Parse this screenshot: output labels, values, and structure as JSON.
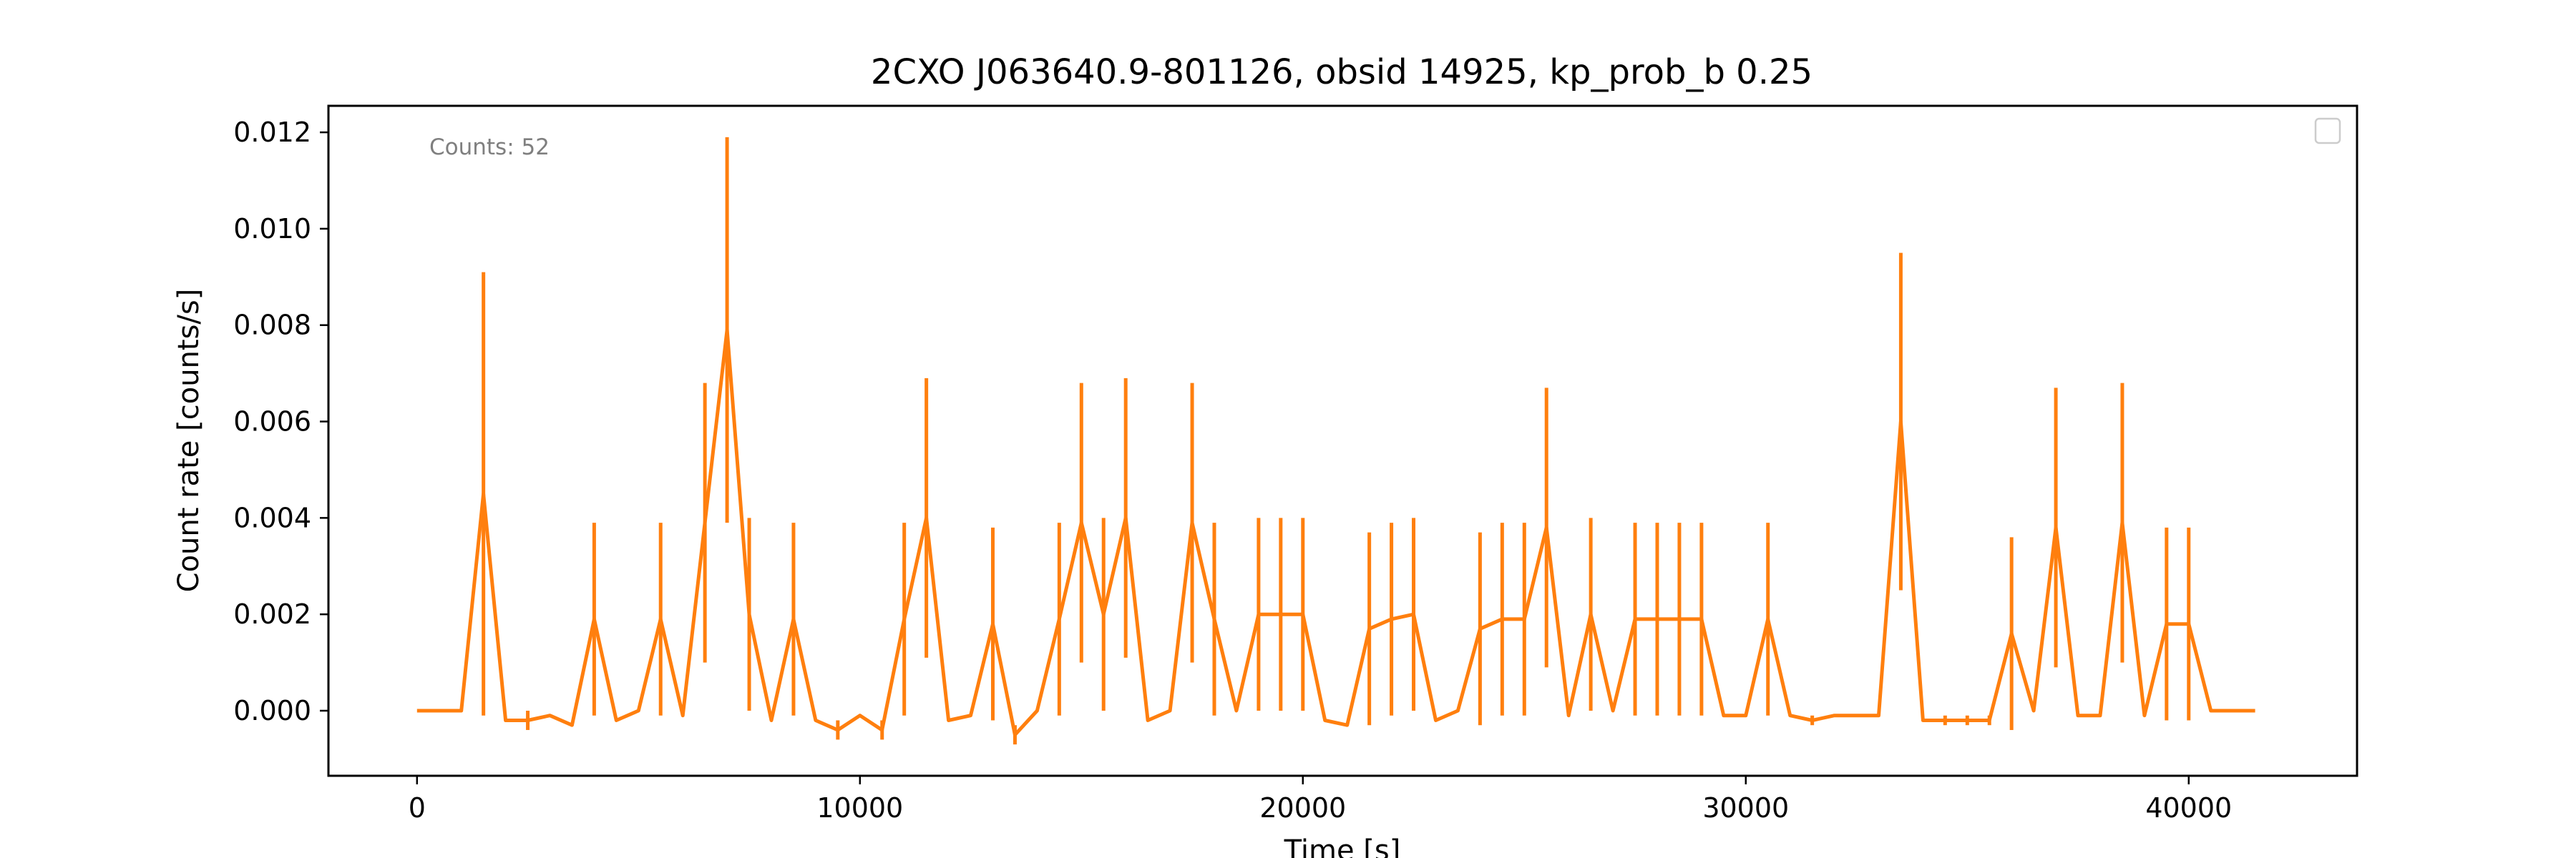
{
  "chart_data": {
    "type": "line",
    "title": "2CXO J063640.9-801126, obsid 14925, kp_prob_b 0.25",
    "xlabel": "Time [s]",
    "ylabel": "Count rate [counts/s]",
    "annotation": "Counts: 52",
    "xlim": [
      -2000,
      43800
    ],
    "ylim": [
      -0.00135,
      0.01255
    ],
    "xticks": [
      0,
      10000,
      20000,
      30000,
      40000
    ],
    "yticks": [
      0.0,
      0.002,
      0.004,
      0.006,
      0.008,
      0.01,
      0.012
    ],
    "ytick_labels": [
      "0.000",
      "0.002",
      "0.004",
      "0.006",
      "0.008",
      "0.010",
      "0.012"
    ],
    "legend": {
      "placement": "top-right",
      "entries": []
    },
    "grid": false,
    "color": "#ff7f0e",
    "series": [
      {
        "x": [
          0,
          1000,
          1500,
          2000,
          2500,
          3000,
          3500,
          4000,
          4500,
          5000,
          5500,
          6000,
          6500,
          7000,
          7500,
          8000,
          8500,
          9000,
          9500,
          10000,
          10500,
          11000,
          11500,
          12000,
          12500,
          13000,
          13500,
          14000,
          14500,
          15000,
          15500,
          16000,
          16500,
          17000,
          17500,
          18000,
          18500,
          19000,
          19500,
          20000,
          20500,
          21000,
          21500,
          22000,
          22500,
          23000,
          23500,
          24000,
          24500,
          25000,
          25500,
          26000,
          26500,
          27000,
          27500,
          28000,
          28500,
          29000,
          29500,
          30000,
          30500,
          31000,
          31500,
          32000,
          32500,
          33000,
          33500,
          34000,
          34500,
          35000,
          35500,
          36000,
          36500,
          37000,
          37500,
          38000,
          38500,
          39000,
          39500,
          40000,
          40500,
          41500
        ],
        "y": [
          0.0,
          0.0,
          0.0045,
          -0.0002,
          -0.0002,
          -0.0001,
          -0.0003,
          0.0019,
          -0.0002,
          0.0,
          0.0019,
          -0.0001,
          0.0039,
          0.0079,
          0.002,
          -0.0002,
          0.0019,
          -0.0002,
          -0.0004,
          -0.0001,
          -0.0004,
          0.0019,
          0.004,
          -0.0002,
          -0.0001,
          0.0018,
          -0.0005,
          0.0,
          0.0019,
          0.0039,
          0.002,
          0.004,
          -0.0002,
          0.0,
          0.0039,
          0.0019,
          0.0,
          0.002,
          0.002,
          0.002,
          -0.0002,
          -0.0003,
          0.0017,
          0.0019,
          0.002,
          -0.0002,
          0.0,
          0.0017,
          0.0019,
          0.0019,
          0.0038,
          -0.0001,
          0.002,
          0.0,
          0.0019,
          0.0019,
          0.0019,
          0.0019,
          -0.0001,
          -0.0001,
          0.0019,
          -0.0001,
          -0.0002,
          -0.0001,
          -0.0001,
          -0.0001,
          0.006,
          -0.0002,
          -0.0002,
          -0.0002,
          -0.0002,
          0.0016,
          0.0,
          0.0038,
          -0.0001,
          -0.0001,
          0.0039,
          -0.0001,
          0.0018,
          0.0018,
          0.0,
          0.0
        ],
        "yerr": [
          0,
          0,
          0.0046,
          0,
          0.0002,
          0,
          0,
          0.002,
          0,
          0,
          0.002,
          0,
          0.0029,
          0.004,
          0.002,
          0,
          0.002,
          0,
          0.0002,
          0,
          0.0002,
          0.002,
          0.0029,
          0,
          0,
          0.002,
          0.0002,
          0,
          0.002,
          0.0029,
          0.002,
          0.0029,
          0,
          0,
          0.0029,
          0.002,
          0,
          0.002,
          0.002,
          0.002,
          0,
          0,
          0.002,
          0.002,
          0.002,
          0,
          0,
          0.002,
          0.002,
          0.002,
          0.0029,
          0,
          0.002,
          0,
          0.002,
          0.002,
          0.002,
          0.002,
          0,
          0,
          0.002,
          0,
          0.0001,
          0,
          0,
          0,
          0.0035,
          0,
          0.0001,
          0.0001,
          0.0001,
          0.002,
          0,
          0.0029,
          0,
          0,
          0.0029,
          0,
          0.002,
          0.002,
          0,
          0
        ]
      }
    ]
  }
}
